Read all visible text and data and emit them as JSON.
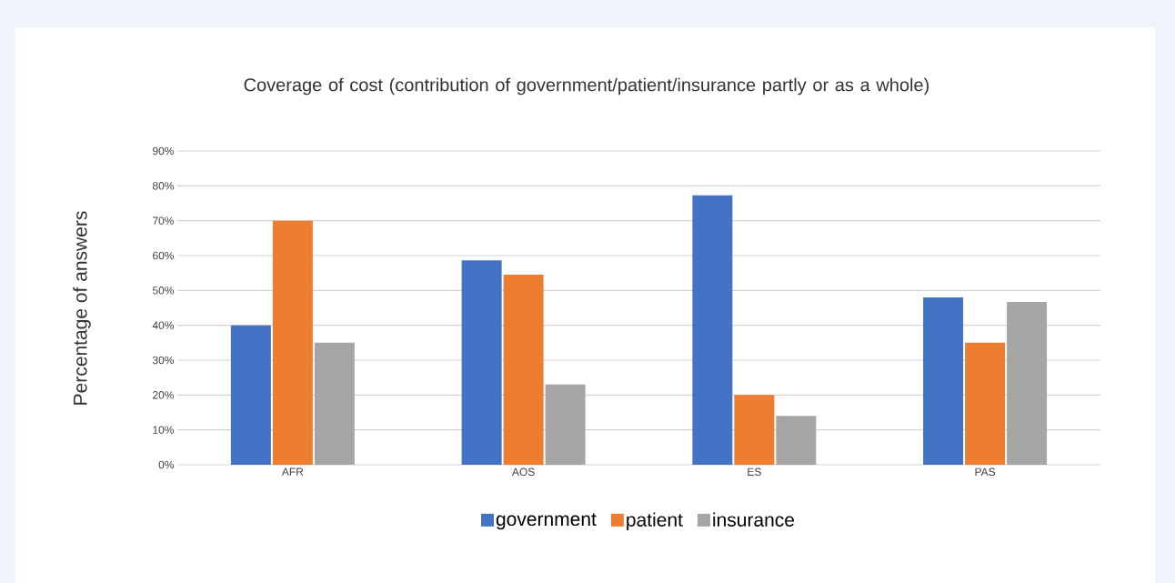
{
  "chart_data": {
    "type": "bar",
    "title": "Coverage of cost (contribution of government/patient/insurance partly or as a whole)",
    "ylabel": "Percentage of answers",
    "categories": [
      "AFR",
      "AOS",
      "ES",
      "PAS"
    ],
    "series": [
      {
        "name": "government",
        "color": "#4472c4",
        "values": [
          40,
          58.6,
          77.3,
          48
        ]
      },
      {
        "name": "patient",
        "color": "#ed7d31",
        "values": [
          70,
          54.5,
          20,
          35
        ]
      },
      {
        "name": "insurance",
        "color": "#a5a5a5",
        "values": [
          35,
          23,
          14,
          46.7
        ]
      }
    ],
    "ylim": [
      0,
      90
    ],
    "yticks": [
      {
        "value": 0,
        "label": "0%"
      },
      {
        "value": 10,
        "label": "10%"
      },
      {
        "value": 20,
        "label": "20%"
      },
      {
        "value": 30,
        "label": "30%"
      },
      {
        "value": 40,
        "label": "40%"
      },
      {
        "value": 50,
        "label": "50%"
      },
      {
        "value": 60,
        "label": "60%"
      },
      {
        "value": 70,
        "label": "70%"
      },
      {
        "value": 80,
        "label": "80%"
      },
      {
        "value": 90,
        "label": "90%"
      }
    ],
    "grid": "y",
    "legend": "bottom"
  }
}
